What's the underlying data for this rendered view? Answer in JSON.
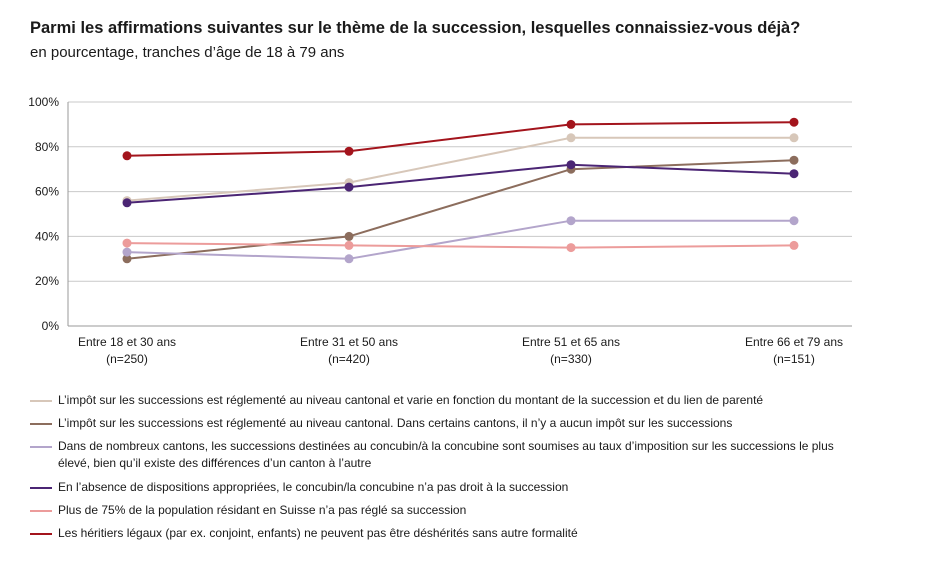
{
  "chart_data": {
    "type": "line",
    "title": "Parmi les affirmations suivantes sur le thème de la succession, lesquelles connaissiez-vous déjà?",
    "subtitle": "en pourcentage, tranches d’âge de 18 à 79 ans",
    "categories": [
      {
        "label": "Entre 18 et 30 ans",
        "n": "(n=250)"
      },
      {
        "label": "Entre 31 et 50 ans",
        "n": "(n=420)"
      },
      {
        "label": "Entre 51 et 65 ans",
        "n": "(n=330)"
      },
      {
        "label": "Entre 66 et 79 ans",
        "n": "(n=151)"
      }
    ],
    "ylim": [
      0,
      100
    ],
    "yticks": [
      "0%",
      "20%",
      "40%",
      "60%",
      "80%",
      "100%"
    ],
    "grid": true,
    "series": [
      {
        "name": "L’impôt sur les successions est réglementé au niveau cantonal et varie en fonction du montant de la succession et du lien de parenté",
        "color": "#d7c7b9",
        "values": [
          56,
          64,
          84,
          84
        ]
      },
      {
        "name": "L’impôt sur les successions est réglementé au niveau cantonal. Dans certains cantons, il n’y a aucun impôt sur les successions",
        "color": "#8c6d5d",
        "values": [
          30,
          40,
          70,
          74
        ]
      },
      {
        "name": "Dans de nombreux cantons, les successions destinées au concubin/à la concubine sont soumises au taux d’imposition sur les successions le plus élevé, bien qu’il existe des différences d’un canton à l’autre",
        "color": "#b3a5cb",
        "values": [
          33,
          30,
          47,
          47
        ]
      },
      {
        "name": "En l’absence de dispositions appropriées, le concubin/la concubine n’a pas droit à la succession",
        "color": "#4b2574",
        "values": [
          55,
          62,
          72,
          68
        ]
      },
      {
        "name": "Plus de 75% de la population résidant en Suisse n’a pas réglé sa succession",
        "color": "#ec9c9b",
        "values": [
          37,
          36,
          35,
          36
        ]
      },
      {
        "name": "Les héritiers légaux (par ex. conjoint, enfants) ne peuvent pas être déshérités sans autre formalité",
        "color": "#a3141c",
        "values": [
          76,
          78,
          90,
          91
        ]
      }
    ]
  }
}
